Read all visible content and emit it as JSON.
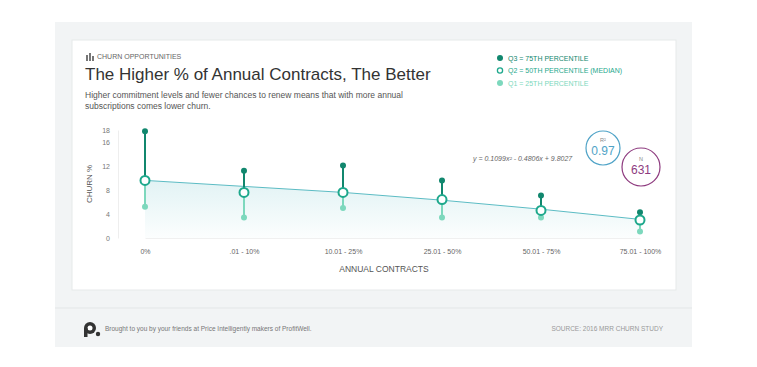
{
  "chart_data": {
    "type": "dot_range",
    "kicker": "CHURN OPPORTUNITIES",
    "title": "The Higher % of Annual Contracts, The Better",
    "subtitle": [
      "Higher commitment levels and fewer chances to renew means that with more annual",
      "subscriptions comes lower churn."
    ],
    "x_label": "ANNUAL CONTRACTS",
    "y_label": "CHURN %",
    "categories": [
      "0%",
      ".01 - 10%",
      "10.01 - 25%",
      "25.01 - 50%",
      "50.01 - 75%",
      "75.01 - 100%"
    ],
    "series": [
      {
        "name": "Q3 = 75TH PERCENTILE",
        "color": "#11876e",
        "marker": "filled",
        "values": [
          17.8,
          11.2,
          12.1,
          9.6,
          7.1,
          4.3
        ]
      },
      {
        "name": "Q2 = 50TH PERCENTILE (MEDIAN)",
        "color": "#1ea88c",
        "marker": "open",
        "values": [
          9.6,
          7.6,
          7.6,
          6.4,
          4.6,
          3.0
        ]
      },
      {
        "name": "Q1 = 25TH PERCENTILE",
        "color": "#7dd8bd",
        "marker": "filled",
        "values": [
          5.2,
          3.4,
          5.0,
          3.4,
          3.4,
          1.1
        ]
      }
    ],
    "trendline": {
      "label": "y = 0.1099x² - 0.4806x + 9.8027",
      "color": "#5cbcc4",
      "values": [
        9.6,
        8.6,
        7.6,
        6.3,
        4.8,
        3.1
      ]
    },
    "stats": [
      {
        "label": "R²",
        "value": 0.97,
        "color": "#4fa3c7"
      },
      {
        "label": "N",
        "value": 631,
        "color": "#8e3b7f"
      }
    ],
    "ylim": [
      0,
      18
    ],
    "yticks": [
      0,
      4,
      8,
      12,
      16,
      18
    ],
    "grid": false,
    "legend": "top-right",
    "footer": "Brought to you by your friends at Price Intelligently makers of ProfitWell.",
    "source": "SOURCE: 2016 MRR CHURN STUDY"
  }
}
